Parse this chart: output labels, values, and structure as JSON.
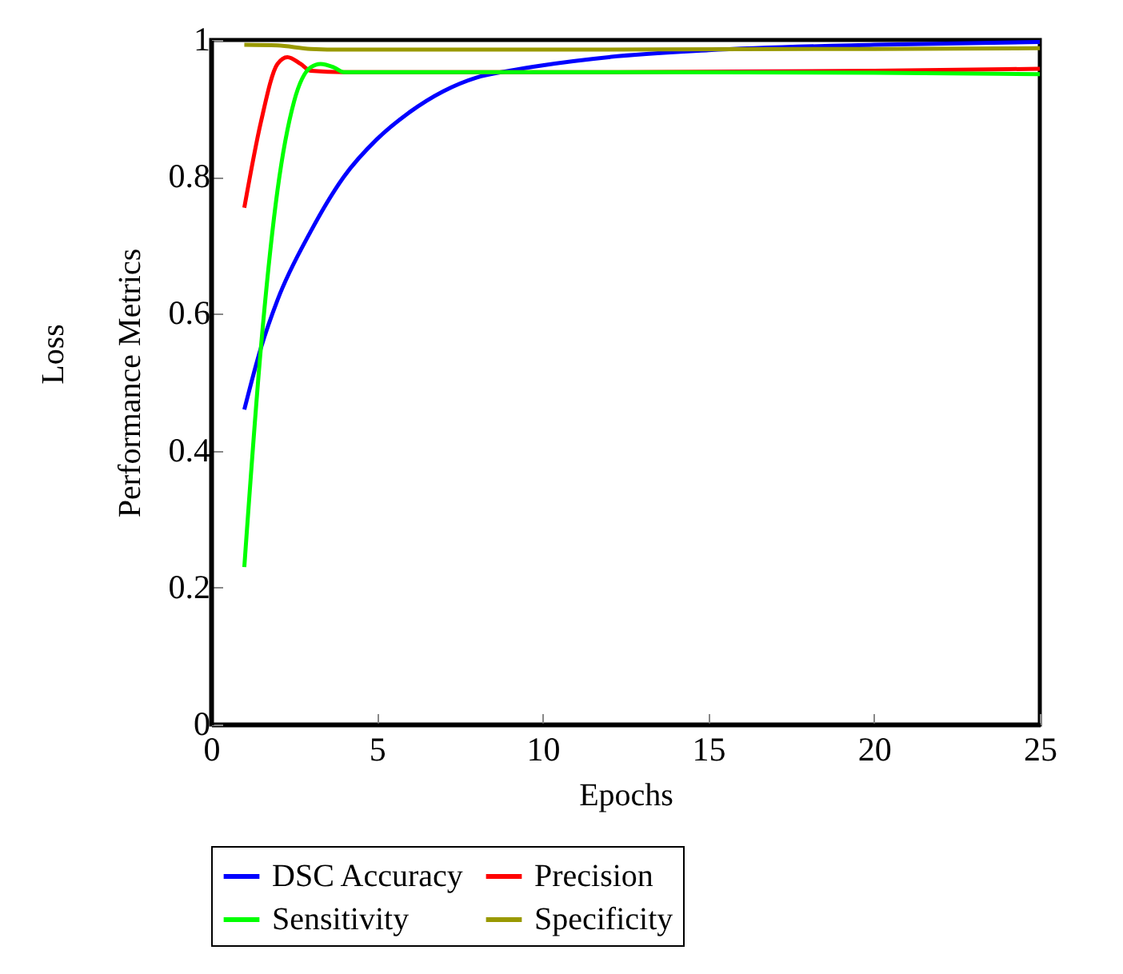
{
  "chart_data": {
    "type": "line",
    "xlabel": "Epochs",
    "ylabel": "Performance Metrics",
    "annotations": [
      "Loss"
    ],
    "xlim": [
      0,
      25
    ],
    "ylim": [
      0,
      1
    ],
    "xticks": [
      0,
      5,
      10,
      15,
      20,
      25
    ],
    "yticks": [
      {
        "value": 0,
        "label": "0"
      },
      0.2,
      0.4,
      0.6,
      0.8,
      {
        "value": 1,
        "label": "1"
      }
    ],
    "grid": false,
    "legend": "bottom",
    "marker": "none",
    "line_style": "solid",
    "series": [
      {
        "name": "DSC Accuracy",
        "color": "#0000ff",
        "x": [
          1,
          1.5,
          2,
          3,
          4,
          5,
          6,
          7,
          8,
          9,
          10,
          12,
          15,
          20,
          25
        ],
        "values": [
          0.46,
          0.55,
          0.62,
          0.72,
          0.8,
          0.855,
          0.895,
          0.925,
          0.945,
          0.955,
          0.963,
          0.975,
          0.985,
          0.993,
          0.997
        ]
      },
      {
        "name": "Precision",
        "color": "#ff0000",
        "x": [
          1,
          1.5,
          2,
          2.3,
          2.7,
          3,
          4,
          10,
          20,
          25
        ],
        "values": [
          0.755,
          0.88,
          0.965,
          0.975,
          0.965,
          0.955,
          0.953,
          0.953,
          0.955,
          0.958
        ]
      },
      {
        "name": "Sensitivity",
        "color": "#00ff00",
        "x": [
          1,
          1.5,
          2,
          2.5,
          3,
          3.3,
          3.7,
          4,
          10,
          20,
          25
        ],
        "values": [
          0.23,
          0.55,
          0.78,
          0.91,
          0.96,
          0.965,
          0.96,
          0.953,
          0.953,
          0.952,
          0.95
        ]
      },
      {
        "name": "Specificity",
        "color": "#999900",
        "x": [
          1,
          2,
          3,
          4,
          10,
          20,
          25
        ],
        "values": [
          0.993,
          0.992,
          0.987,
          0.986,
          0.986,
          0.987,
          0.988
        ]
      }
    ]
  }
}
